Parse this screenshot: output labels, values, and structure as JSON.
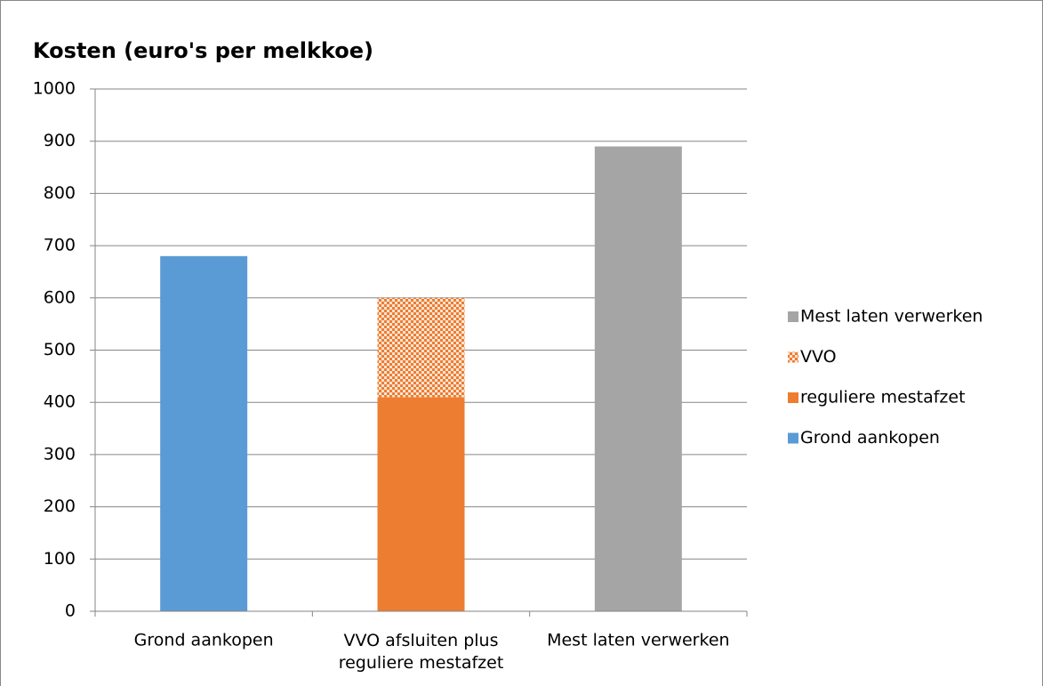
{
  "chart_data": {
    "type": "stacked_bar",
    "title": "Kosten (euro's per melkkoe)",
    "categories": [
      "Grond aankopen",
      "VVO afsluiten plus reguliere mestafzet",
      "Mest laten verwerken"
    ],
    "series": [
      {
        "name": "Grond aankopen",
        "color": "#5b9bd5",
        "values": [
          680,
          null,
          null
        ]
      },
      {
        "name": "reguliere mestafzet",
        "color": "#ed7d31",
        "values": [
          null,
          410,
          null
        ]
      },
      {
        "name": "VVO",
        "color": "#ed7d31",
        "pattern": "checker",
        "values": [
          null,
          190,
          null
        ]
      },
      {
        "name": "Mest laten verwerken",
        "color": "#a5a5a5",
        "values": [
          null,
          null,
          890
        ]
      }
    ],
    "ylim": [
      0,
      1000
    ],
    "yticks": [
      0,
      100,
      200,
      300,
      400,
      500,
      600,
      700,
      800,
      900,
      1000
    ],
    "grid": true,
    "legend": "right"
  }
}
